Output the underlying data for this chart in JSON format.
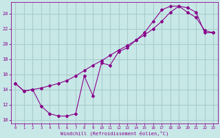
{
  "xlabel": "Windchill (Refroidissement éolien,°C)",
  "background_color": "#c8e8e8",
  "grid_color": "#aacccc",
  "line_color": "#880088",
  "xlim": [
    -0.5,
    23.5
  ],
  "ylim": [
    9.5,
    25.5
  ],
  "yticks": [
    10,
    12,
    14,
    16,
    18,
    20,
    22,
    24
  ],
  "xticks": [
    0,
    1,
    2,
    3,
    4,
    5,
    6,
    7,
    8,
    9,
    10,
    11,
    12,
    13,
    14,
    15,
    16,
    17,
    18,
    19,
    20,
    21,
    22,
    23
  ],
  "line_upper_x": [
    0,
    1,
    2,
    3,
    4,
    5,
    6,
    7,
    8,
    9,
    10,
    11,
    12,
    13,
    14,
    15,
    16,
    17,
    18,
    19,
    20,
    21,
    22,
    23
  ],
  "line_upper_y": [
    14.8,
    13.8,
    14.0,
    14.2,
    14.5,
    14.8,
    15.2,
    15.8,
    16.5,
    17.2,
    17.8,
    18.5,
    19.2,
    19.8,
    20.5,
    21.2,
    22.0,
    23.0,
    24.2,
    25.0,
    24.8,
    24.2,
    21.5,
    21.5
  ],
  "line_lower_x": [
    0,
    1,
    2,
    3,
    4,
    5,
    6,
    7,
    8,
    9,
    10,
    11,
    12,
    13,
    14,
    15,
    16,
    17,
    18,
    19,
    20,
    21,
    22,
    23
  ],
  "line_lower_y": [
    14.8,
    13.8,
    14.0,
    11.8,
    10.8,
    10.5,
    10.5,
    10.8,
    15.8,
    13.2,
    17.5,
    17.2,
    19.0,
    19.5,
    20.5,
    21.5,
    23.0,
    24.5,
    25.0,
    25.0,
    24.2,
    23.5,
    21.8,
    21.5
  ]
}
